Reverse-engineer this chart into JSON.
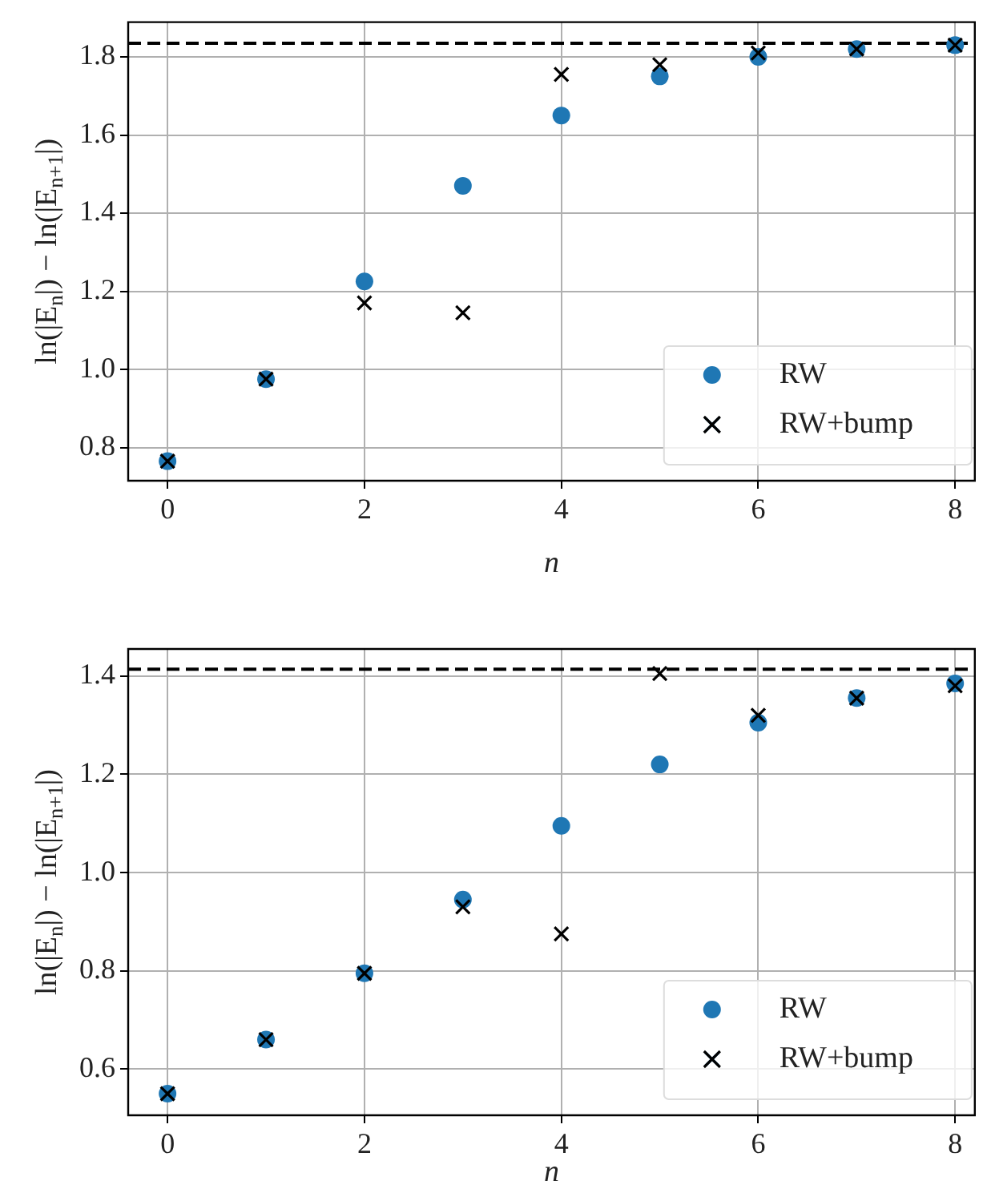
{
  "chart_data": [
    {
      "type": "scatter",
      "xlabel": "n",
      "ylabel": "ln(|E$_{n}$|) − ln(|E$_{n+1}$|)",
      "x": [
        0,
        1,
        2,
        3,
        4,
        5,
        6,
        7,
        8
      ],
      "series": [
        {
          "name": "RW",
          "color": "#1f77b4",
          "marker": "circle",
          "values": [
            0.765,
            0.975,
            1.225,
            1.47,
            1.65,
            1.75,
            1.8,
            1.82,
            1.83
          ]
        },
        {
          "name": "RW+bump",
          "color": "#000000",
          "marker": "cross",
          "values": [
            0.765,
            0.975,
            1.17,
            1.145,
            1.755,
            1.78,
            1.81,
            1.82,
            1.83
          ]
        }
      ],
      "xlim": [
        -0.4,
        8.2
      ],
      "xticks": [
        0,
        2,
        4,
        6,
        8
      ],
      "ylim": [
        0.715,
        1.889
      ],
      "yticks": [
        0.8,
        {
          "value": 1,
          "label": "1.0"
        },
        1.2,
        1.4,
        1.6,
        1.8
      ],
      "ref_lines": [
        {
          "axis": "y",
          "value": 1.835,
          "color": "#000000",
          "line_style": "dashed"
        }
      ],
      "grid": true,
      "legend": "bottom right"
    },
    {
      "type": "scatter",
      "xlabel": "n",
      "ylabel": "ln(|E$_{n}$|) − ln(|E$_{n+1}$|)",
      "x": [
        0,
        1,
        2,
        3,
        4,
        5,
        6,
        7,
        8
      ],
      "series": [
        {
          "name": "RW",
          "color": "#1f77b4",
          "marker": "circle",
          "values": [
            0.55,
            0.66,
            0.795,
            0.945,
            1.095,
            1.22,
            1.305,
            1.355,
            1.385
          ]
        },
        {
          "name": "RW+bump",
          "color": "#000000",
          "marker": "cross",
          "values": [
            0.55,
            0.66,
            0.795,
            0.93,
            0.875,
            1.405,
            1.32,
            1.355,
            1.38
          ]
        }
      ],
      "xlim": [
        -0.4,
        8.2
      ],
      "xticks": [
        0,
        2,
        4,
        6,
        8
      ],
      "ylim": [
        0.506,
        1.455
      ],
      "yticks": [
        0.6,
        0.8,
        {
          "value": 1,
          "label": "1.0"
        },
        1.2,
        1.4
      ],
      "ref_lines": [
        {
          "axis": "y",
          "value": 1.414,
          "color": "#000000",
          "line_style": "dashed"
        }
      ],
      "grid": true,
      "legend": "bottom right"
    }
  ]
}
